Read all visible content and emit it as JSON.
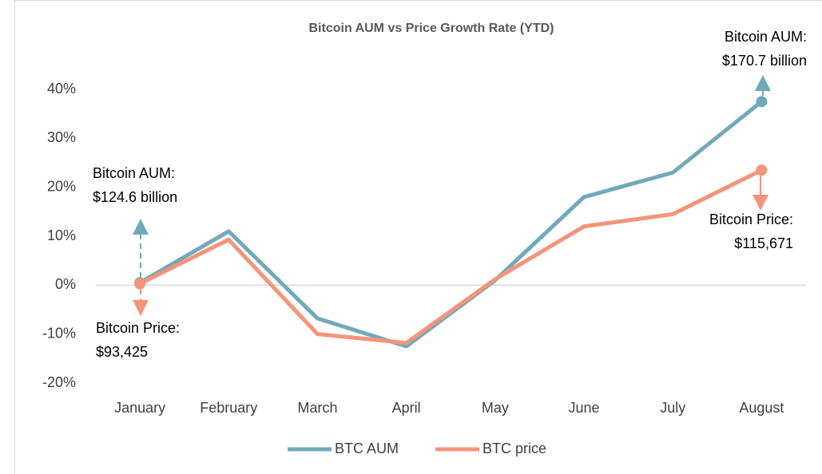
{
  "chart_data": {
    "type": "line",
    "title": "Bitcoin AUM vs Price Growth Rate (YTD)",
    "categories": [
      "January",
      "February",
      "March",
      "April",
      "May",
      "June",
      "July",
      "August"
    ],
    "series": [
      {
        "name": "BTC AUM",
        "color": "#72a9b9",
        "values": [
          0.5,
          11,
          -6.8,
          -12.5,
          1,
          18,
          23,
          37.5
        ]
      },
      {
        "name": "BTC price",
        "color": "#f4947a",
        "values": [
          0.3,
          9.3,
          -10,
          -11.8,
          1.2,
          12,
          14.5,
          23.5
        ]
      }
    ],
    "ylim": [
      -20,
      40
    ],
    "yticks": [
      {
        "value": -20,
        "label": "-20%"
      },
      {
        "value": -10,
        "label": "-10%"
      },
      {
        "value": 0,
        "label": "0%"
      },
      {
        "value": 10,
        "label": "10%"
      },
      {
        "value": 20,
        "label": "20%"
      },
      {
        "value": 30,
        "label": "30%"
      },
      {
        "value": 40,
        "label": "40%"
      }
    ],
    "legend": "bottom",
    "annotations": [
      {
        "lines": [
          "Bitcoin AUM:",
          "$124.6 billion"
        ]
      },
      {
        "lines": [
          "Bitcoin Price:",
          "$93,425"
        ]
      },
      {
        "lines": [
          "Bitcoin AUM:",
          "$170.7 billion"
        ]
      },
      {
        "lines": [
          "Bitcoin Price:",
          "$115,671"
        ]
      }
    ]
  }
}
